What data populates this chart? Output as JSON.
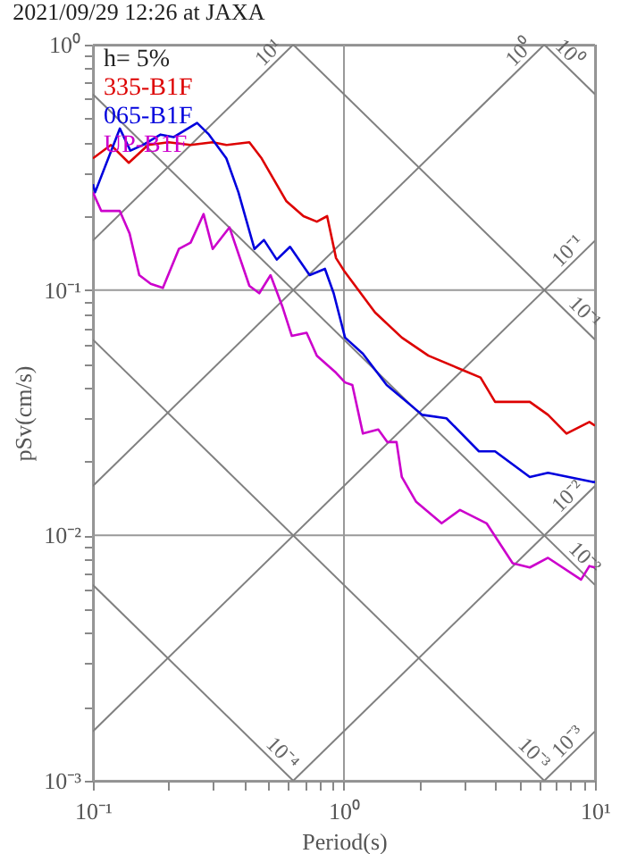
{
  "chart_data": {
    "type": "line",
    "title": "2021/09/29 12:26 at JAXA",
    "xlabel": "Period(s)",
    "ylabel": "pSv(cm/s)",
    "log": "xy",
    "grid": true,
    "legend": "top left",
    "annotations": [
      "h= 5%"
    ],
    "xlim": [
      0.1,
      10
    ],
    "ylim": [
      0.001,
      1
    ],
    "xticks": [
      {
        "value": 0.1,
        "label": "10⁻¹"
      },
      {
        "value": 0.2,
        "label": null
      },
      {
        "value": 0.3,
        "label": null
      },
      {
        "value": 0.4,
        "label": null
      },
      {
        "value": 0.5,
        "label": null
      },
      {
        "value": 0.6,
        "label": null
      },
      {
        "value": 0.7,
        "label": null
      },
      {
        "value": 0.8,
        "label": null
      },
      {
        "value": 0.9,
        "label": null
      },
      {
        "value": 1,
        "label": "10⁰"
      },
      {
        "value": 2,
        "label": null
      },
      {
        "value": 3,
        "label": null
      },
      {
        "value": 4,
        "label": null
      },
      {
        "value": 5,
        "label": null
      },
      {
        "value": 6,
        "label": null
      },
      {
        "value": 7,
        "label": null
      },
      {
        "value": 8,
        "label": null
      },
      {
        "value": 9,
        "label": null
      },
      {
        "value": 10,
        "label": "10¹"
      }
    ],
    "yticks": [
      {
        "value": 0.001,
        "label": "10⁻³"
      },
      {
        "value": 0.002,
        "label": null
      },
      {
        "value": 0.003,
        "label": null
      },
      {
        "value": 0.004,
        "label": null
      },
      {
        "value": 0.005,
        "label": null
      },
      {
        "value": 0.006,
        "label": null
      },
      {
        "value": 0.007,
        "label": null
      },
      {
        "value": 0.008,
        "label": null
      },
      {
        "value": 0.009,
        "label": null
      },
      {
        "value": 0.01,
        "label": "10⁻²"
      },
      {
        "value": 0.02,
        "label": null
      },
      {
        "value": 0.03,
        "label": null
      },
      {
        "value": 0.04,
        "label": null
      },
      {
        "value": 0.05,
        "label": null
      },
      {
        "value": 0.06,
        "label": null
      },
      {
        "value": 0.07,
        "label": null
      },
      {
        "value": 0.08,
        "label": null
      },
      {
        "value": 0.09,
        "label": null
      },
      {
        "value": 0.1,
        "label": "10⁻¹"
      },
      {
        "value": 0.2,
        "label": null
      },
      {
        "value": 0.3,
        "label": null
      },
      {
        "value": 0.4,
        "label": null
      },
      {
        "value": 0.5,
        "label": null
      },
      {
        "value": 0.6,
        "label": null
      },
      {
        "value": 0.7,
        "label": null
      },
      {
        "value": 0.8,
        "label": null
      },
      {
        "value": 0.9,
        "label": null
      },
      {
        "value": 1,
        "label": "10⁰"
      }
    ],
    "series": [
      {
        "type": "line",
        "color": "#808080",
        "x": [
          0.1,
          0.628
        ],
        "values": [
          0.00628,
          0.001
        ],
        "name": "10⁻⁴"
      },
      {
        "type": "line",
        "color": "#808080",
        "x": [
          0.1,
          6.28
        ],
        "values": [
          0.0628,
          0.001
        ],
        "name": "10⁻³"
      },
      {
        "type": "line",
        "color": "#808080",
        "x": [
          0.1,
          10
        ],
        "values": [
          0.628,
          0.00628
        ],
        "name": "10⁻²"
      },
      {
        "type": "line",
        "color": "#808080",
        "x": [
          0.628,
          10
        ],
        "values": [
          1,
          0.0628
        ],
        "name": "10⁻¹"
      },
      {
        "type": "line",
        "color": "#808080",
        "x": [
          10,
          6.28
        ],
        "values": [
          0.628,
          1
        ],
        "name": "10⁰"
      },
      {
        "type": "line",
        "color": "#808080",
        "x": [
          0.1,
          0.628
        ],
        "values": [
          0.159,
          1
        ],
        "name": "10¹"
      },
      {
        "type": "line",
        "color": "#808080",
        "x": [
          0.1,
          6.28
        ],
        "values": [
          0.0159,
          1
        ],
        "name": "10⁰"
      },
      {
        "type": "line",
        "color": "#808080",
        "x": [
          0.1,
          10
        ],
        "values": [
          0.00159,
          0.159
        ],
        "name": "10⁻¹"
      },
      {
        "type": "line",
        "color": "#808080",
        "x": [
          0.628,
          10
        ],
        "values": [
          0.001,
          0.0159
        ],
        "name": "10⁻²"
      },
      {
        "type": "line",
        "color": "#808080",
        "x": [
          6.28,
          10
        ],
        "values": [
          0.001,
          0.00159
        ],
        "name": "10⁻³"
      },
      {
        "name": "335-B1F",
        "color": "#dd0000",
        "x": [
          0.1,
          0.118,
          0.139,
          0.166,
          0.2,
          0.245,
          0.3,
          0.34,
          0.42,
          0.47,
          0.59,
          0.69,
          0.78,
          0.857,
          0.93,
          1.0,
          1.33,
          1.7,
          2.17,
          3.0,
          3.5,
          4.0,
          5.5,
          6.5,
          7.7,
          9.5,
          10
        ],
        "values": [
          0.344,
          0.39,
          0.33,
          0.39,
          0.4,
          0.39,
          0.4,
          0.39,
          0.4,
          0.344,
          0.23,
          0.2,
          0.19,
          0.2,
          0.135,
          0.12,
          0.081,
          0.064,
          0.054,
          0.047,
          0.044,
          0.035,
          0.035,
          0.031,
          0.026,
          0.029,
          0.028
        ]
      },
      {
        "name": "065-B1F",
        "color": "#0000dd",
        "x": [
          0.1,
          0.102,
          0.128,
          0.141,
          0.158,
          0.186,
          0.21,
          0.26,
          0.29,
          0.34,
          0.38,
          0.44,
          0.48,
          0.54,
          0.61,
          0.73,
          0.84,
          0.91,
          1.01,
          1.19,
          1.48,
          2.05,
          2.56,
          3.45,
          4.0,
          5.5,
          6.5,
          9.8,
          10
        ],
        "values": [
          0.27,
          0.25,
          0.455,
          0.37,
          0.39,
          0.43,
          0.42,
          0.48,
          0.43,
          0.344,
          0.25,
          0.147,
          0.16,
          0.133,
          0.15,
          0.115,
          0.122,
          0.097,
          0.064,
          0.055,
          0.041,
          0.031,
          0.03,
          0.022,
          0.022,
          0.0173,
          0.018,
          0.0165,
          0.0165
        ]
      },
      {
        "name": "UP-B1F",
        "color": "#cc00cc",
        "x": [
          0.1,
          0.108,
          0.128,
          0.14,
          0.153,
          0.17,
          0.19,
          0.22,
          0.245,
          0.276,
          0.3,
          0.35,
          0.42,
          0.46,
          0.51,
          0.57,
          0.62,
          0.71,
          0.78,
          0.93,
          1.01,
          1.08,
          1.19,
          1.37,
          1.49,
          1.62,
          1.7,
          1.94,
          2.45,
          2.9,
          3.7,
          4.7,
          5.5,
          6.5,
          8.8,
          9.5,
          10
        ],
        "values": [
          0.25,
          0.21,
          0.21,
          0.17,
          0.115,
          0.106,
          0.102,
          0.147,
          0.156,
          0.204,
          0.147,
          0.18,
          0.104,
          0.097,
          0.115,
          0.085,
          0.065,
          0.067,
          0.054,
          0.046,
          0.042,
          0.041,
          0.026,
          0.027,
          0.024,
          0.024,
          0.0173,
          0.0137,
          0.0112,
          0.0127,
          0.0112,
          0.0077,
          0.0074,
          0.0081,
          0.0066,
          0.0075,
          0.0074
        ]
      }
    ]
  }
}
